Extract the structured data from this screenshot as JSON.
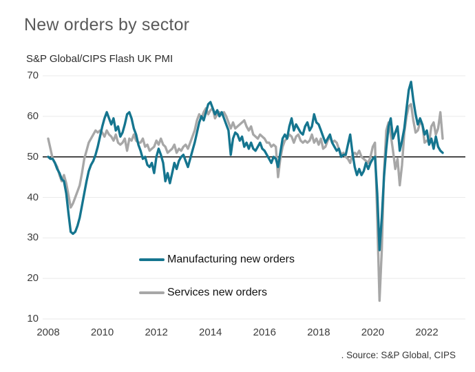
{
  "chart_data": {
    "type": "line",
    "title": "New orders by sector",
    "subtitle": "S&P Global/CIPS Flash UK PMI",
    "source": ". Source: S&P Global, CIPS",
    "x_start_year": 2008,
    "x_interval": "monthly",
    "x_end_label": "Aug 2022",
    "xticks": [
      2008,
      2010,
      2012,
      2014,
      2016,
      2018,
      2020,
      2022
    ],
    "yticks": [
      10,
      20,
      30,
      40,
      50,
      60,
      70
    ],
    "ylim": [
      10,
      70
    ],
    "reference_line": 50,
    "grid": "horizontal-light",
    "legend_position": "inside-left-lower",
    "colors": {
      "manufacturing": "#15758f",
      "services": "#a7a7a7",
      "gridline": "#e9e9e9",
      "reference": "#1a1a1a"
    },
    "series": [
      {
        "name": "Manufacturing new orders",
        "color": "#15758f",
        "values": [
          50,
          49.5,
          49.5,
          48.5,
          47,
          46,
          44.5,
          44,
          41,
          36,
          31.5,
          31,
          31.5,
          33,
          35,
          38,
          41,
          44,
          46.5,
          48,
          49,
          50.5,
          52.5,
          55,
          57.5,
          59.5,
          61,
          59.5,
          58,
          59.5,
          56.5,
          57.5,
          55,
          56,
          58,
          60.5,
          61,
          59.5,
          57,
          55.5,
          53,
          51.5,
          49.5,
          50,
          48,
          47.5,
          48.5,
          46,
          50,
          52,
          50.5,
          48.5,
          44,
          46,
          43.5,
          46,
          48.5,
          47,
          49,
          50,
          50.5,
          49,
          47.5,
          49.5,
          51.5,
          53.5,
          56,
          58.5,
          60,
          59,
          61,
          63,
          63.5,
          62,
          60.5,
          61.5,
          60,
          61,
          59.5,
          58,
          56.5,
          50.5,
          54.5,
          56,
          55.5,
          54,
          55,
          52.5,
          53.5,
          52,
          53.5,
          52,
          51.5,
          52.5,
          53.5,
          52,
          51.5,
          50.5,
          49.5,
          48.5,
          50,
          49.5,
          47.5,
          51,
          54.5,
          55.5,
          54.5,
          57.5,
          59.5,
          56.5,
          58,
          57,
          56,
          55.5,
          57.5,
          58.5,
          56.5,
          57.5,
          60.5,
          58.5,
          58,
          56.5,
          55,
          53.5,
          54.5,
          55.5,
          53.5,
          52.5,
          51.5,
          52,
          50,
          50.5,
          50.5,
          53,
          55.5,
          51,
          47.5,
          45.5,
          47,
          45.5,
          46.5,
          48.5,
          47,
          48.5,
          49.5,
          50,
          41,
          27,
          35,
          45,
          52,
          57.5,
          59.5,
          54.5,
          56,
          57.5,
          51.5,
          54,
          57,
          62,
          66.5,
          68.5,
          64,
          60.5,
          58,
          59.5,
          58,
          55.5,
          56.5,
          53,
          54.5,
          52,
          55,
          52.5,
          51.5,
          51
        ]
      },
      {
        "name": "Services new orders",
        "color": "#a7a7a7",
        "values": [
          54.5,
          52,
          49.5,
          48.5,
          47.5,
          45.5,
          44,
          45.5,
          43.5,
          40.5,
          37.5,
          38.5,
          40,
          41.5,
          43,
          46,
          49.5,
          51.5,
          53.5,
          54.5,
          55.5,
          56.5,
          56,
          56.5,
          56,
          55,
          56.5,
          55.5,
          55,
          54,
          55.5,
          53.5,
          53,
          53.5,
          54.5,
          51.5,
          54.5,
          54,
          55.5,
          54,
          53.5,
          53.5,
          54.5,
          52.5,
          53,
          51.5,
          52,
          52.5,
          54,
          53,
          54.5,
          53,
          52.5,
          51,
          51.5,
          52,
          53,
          51,
          52,
          51.5,
          52.5,
          53,
          52,
          53.5,
          55,
          56.5,
          59,
          60.5,
          59.5,
          61,
          62,
          60.5,
          61.5,
          62,
          59.5,
          60.5,
          61,
          60.5,
          61,
          60,
          58.5,
          57,
          58.5,
          57,
          57.5,
          58,
          58.5,
          59,
          57.5,
          56.5,
          57.5,
          55.5,
          55,
          54.5,
          55.5,
          55,
          54.5,
          53.5,
          53.5,
          52.5,
          53,
          52.5,
          45,
          49.5,
          52.5,
          54,
          54.5,
          55.5,
          55,
          53.5,
          55,
          55.5,
          54,
          53.5,
          54,
          53.5,
          54,
          55.5,
          53.5,
          54.5,
          53,
          54.5,
          52,
          52.5,
          54,
          55,
          53.5,
          54,
          53.5,
          52,
          50.5,
          51,
          50,
          49.5,
          48.5,
          50.5,
          51,
          50.5,
          51.5,
          50,
          49.5,
          49,
          48.5,
          50,
          52.5,
          53.5,
          35,
          14.5,
          27,
          46,
          56.5,
          58.5,
          55.5,
          51.5,
          47,
          49.5,
          43,
          48,
          56,
          60,
          62.5,
          63,
          59,
          56,
          56.5,
          58.5,
          58,
          53.5,
          54,
          53.5,
          57.5,
          58.5,
          55.5,
          57,
          61,
          54.5
        ]
      }
    ]
  },
  "layout_text": {
    "legend": {
      "manufacturing_label": "Manufacturing new orders",
      "services_label": "Services new orders"
    }
  }
}
